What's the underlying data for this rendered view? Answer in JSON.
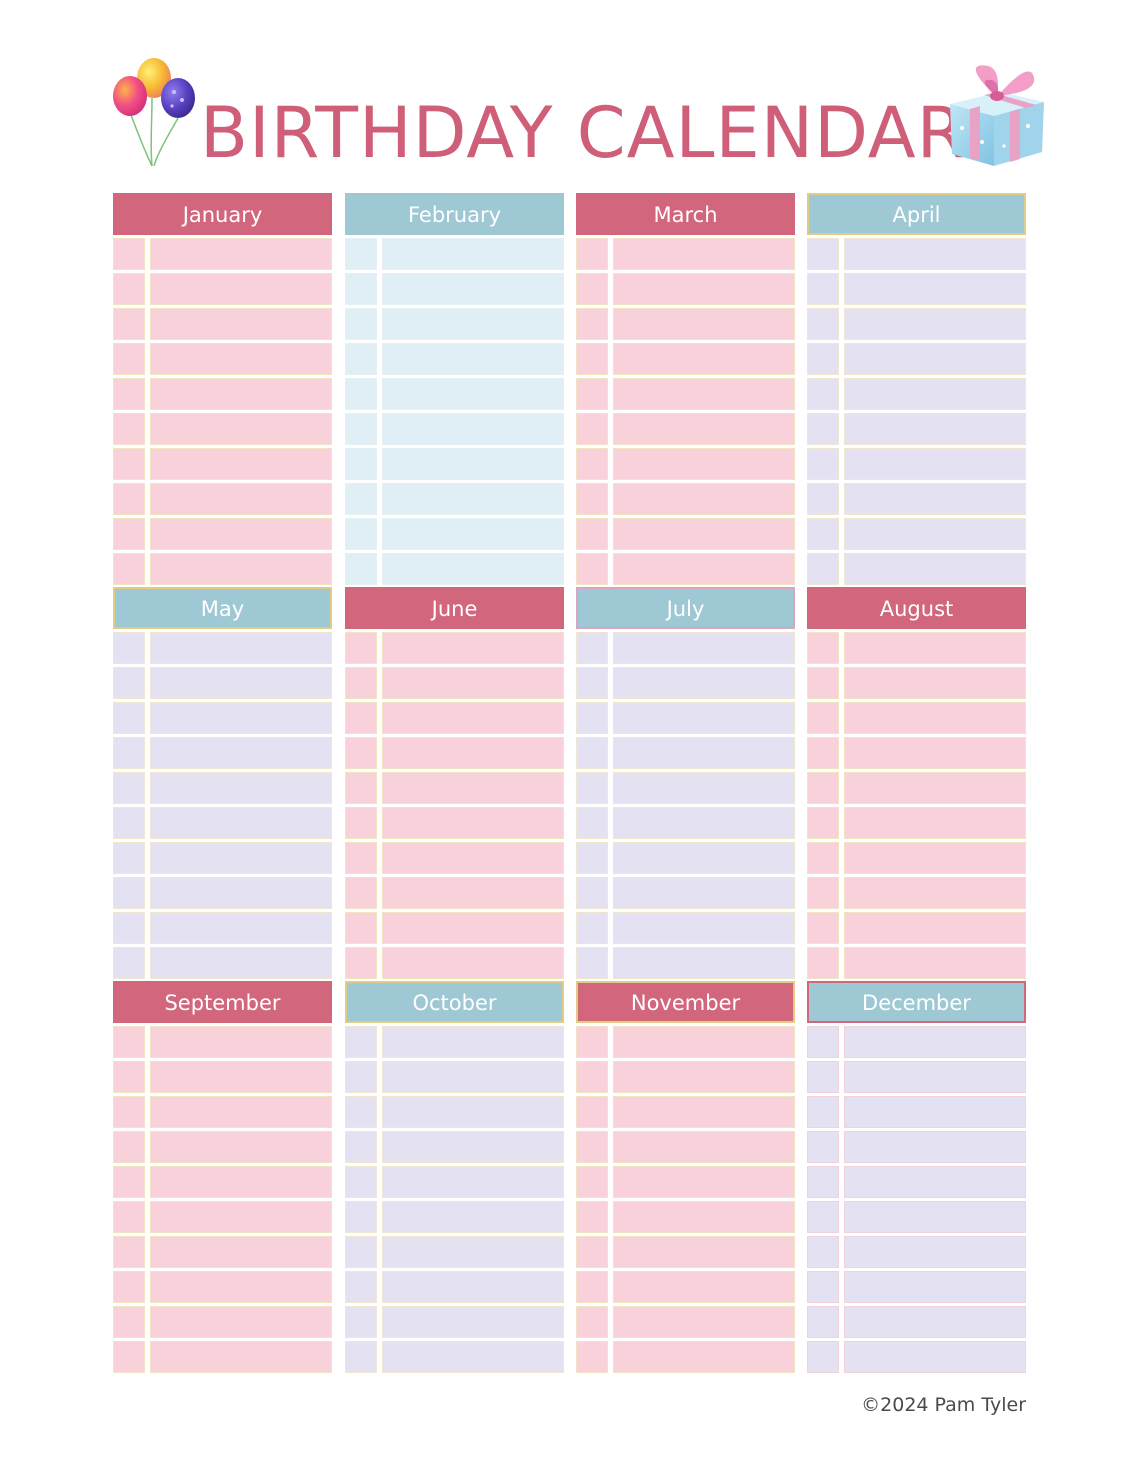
{
  "title": "BIRTHDAY CALENDAR",
  "copyright": "©2024 Pam Tyler",
  "colors": {
    "title": "#cf5f78",
    "header_pink": "#d1667c",
    "header_blue": "#9ec8d4",
    "row_pink": "#f8d1da",
    "row_blue": "#e0eff6",
    "row_lavender": "#e4e2f2"
  },
  "icons": {
    "left": "balloons-icon",
    "right": "gift-box-icon"
  },
  "months": [
    {
      "name": "January",
      "header": "pink",
      "rows": "pink",
      "row_count": 10
    },
    {
      "name": "February",
      "header": "blue",
      "rows": "blue",
      "row_count": 10
    },
    {
      "name": "March",
      "header": "pink",
      "rows": "pink",
      "row_count": 10
    },
    {
      "name": "April",
      "header": "blue",
      "rows": "lavender",
      "row_count": 10
    },
    {
      "name": "May",
      "header": "blue",
      "rows": "lavender",
      "row_count": 10
    },
    {
      "name": "June",
      "header": "pink",
      "rows": "pink",
      "row_count": 10
    },
    {
      "name": "July",
      "header": "blue",
      "rows": "lavender",
      "row_count": 10
    },
    {
      "name": "August",
      "header": "pink",
      "rows": "pink",
      "row_count": 10
    },
    {
      "name": "September",
      "header": "pink",
      "rows": "pink",
      "row_count": 10
    },
    {
      "name": "October",
      "header": "blue",
      "rows": "lavender",
      "row_count": 10
    },
    {
      "name": "November",
      "header": "pink",
      "rows": "pink",
      "row_count": 10
    },
    {
      "name": "December",
      "header": "blue",
      "rows": "lavender",
      "row_count": 10
    }
  ]
}
